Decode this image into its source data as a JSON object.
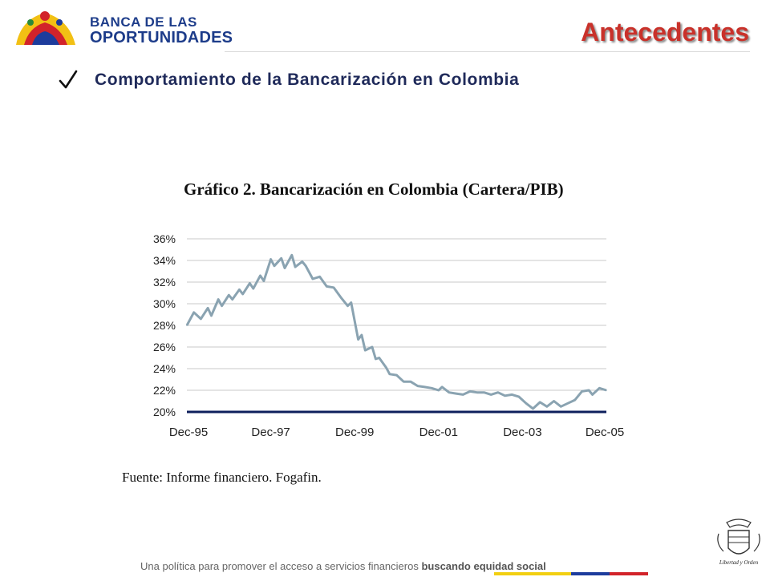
{
  "header": {
    "logo_line1": "BANCA DE LAS",
    "logo_line2": "OPORTUNIDADES",
    "title": "Antecedentes"
  },
  "subtitle": "Comportamiento de la  Bancarización en Colombia",
  "chart_title": "Gráfico 2. Bancarización en Colombia (Cartera/PIB)",
  "source": "Fuente: Informe financiero. Fogafin.",
  "footer": {
    "text_plain": "Una política para promover el acceso a servicios financieros ",
    "text_emphasis": "buscando equidad social"
  },
  "seal": {
    "caption": "Libertad y Orden"
  },
  "colors": {
    "title": "#c9312a",
    "subtitle": "#1f2a5a",
    "series_line": "#8aa3b1",
    "baseline": "#0d1f5c",
    "flag_yellow": "#f2cf12",
    "flag_blue": "#1d3c9c",
    "flag_red": "#d2232a"
  },
  "icons": [
    "checkmark-icon",
    "logo-icon",
    "coat-of-arms-icon"
  ],
  "chart_data": {
    "type": "line",
    "title": "Gráfico 2. Bancarización en Colombia (Cartera/PIB)",
    "ylim": [
      20,
      36
    ],
    "yticks": [
      20,
      22,
      24,
      26,
      28,
      30,
      32,
      34,
      36
    ],
    "ytick_labels": [
      "20%",
      "22%",
      "24%",
      "26%",
      "28%",
      "30%",
      "32%",
      "34%",
      "36%"
    ],
    "xlim": [
      "1995-12",
      "2005-12"
    ],
    "xtick_labels": [
      "Dec-95",
      "Dec-97",
      "Dec-99",
      "Dec-01",
      "Dec-03",
      "Dec-05"
    ],
    "xticks": [
      "1995-12",
      "1997-12",
      "1999-12",
      "2001-12",
      "2003-12",
      "2005-12"
    ],
    "grid": true,
    "series": [
      {
        "points": [
          [
            "1995-12",
            28.0
          ],
          [
            "1996-02",
            29.2
          ],
          [
            "1996-04",
            28.6
          ],
          [
            "1996-06",
            29.6
          ],
          [
            "1996-07",
            28.9
          ],
          [
            "1996-09",
            30.4
          ],
          [
            "1996-10",
            29.8
          ],
          [
            "1996-12",
            30.8
          ],
          [
            "1997-01",
            30.4
          ],
          [
            "1997-03",
            31.3
          ],
          [
            "1997-04",
            30.9
          ],
          [
            "1997-06",
            31.9
          ],
          [
            "1997-07",
            31.4
          ],
          [
            "1997-09",
            32.6
          ],
          [
            "1997-10",
            32.1
          ],
          [
            "1997-12",
            34.1
          ],
          [
            "1998-01",
            33.5
          ],
          [
            "1998-03",
            34.2
          ],
          [
            "1998-04",
            33.3
          ],
          [
            "1998-06",
            34.5
          ],
          [
            "1998-07",
            33.4
          ],
          [
            "1998-09",
            33.9
          ],
          [
            "1998-10",
            33.5
          ],
          [
            "1998-12",
            32.3
          ],
          [
            "1999-02",
            32.5
          ],
          [
            "1999-04",
            31.6
          ],
          [
            "1999-06",
            31.5
          ],
          [
            "1999-08",
            30.6
          ],
          [
            "1999-10",
            29.8
          ],
          [
            "1999-11",
            30.1
          ],
          [
            "2000-01",
            26.7
          ],
          [
            "2000-02",
            27.1
          ],
          [
            "2000-03",
            25.7
          ],
          [
            "2000-05",
            26.0
          ],
          [
            "2000-06",
            24.9
          ],
          [
            "2000-07",
            25.0
          ],
          [
            "2000-09",
            24.1
          ],
          [
            "2000-10",
            23.5
          ],
          [
            "2000-12",
            23.4
          ],
          [
            "2001-02",
            22.8
          ],
          [
            "2001-04",
            22.8
          ],
          [
            "2001-06",
            22.4
          ],
          [
            "2001-08",
            22.3
          ],
          [
            "2001-10",
            22.2
          ],
          [
            "2001-12",
            22.0
          ],
          [
            "2002-01",
            22.3
          ],
          [
            "2002-03",
            21.8
          ],
          [
            "2002-05",
            21.7
          ],
          [
            "2002-07",
            21.6
          ],
          [
            "2002-09",
            21.9
          ],
          [
            "2002-11",
            21.8
          ],
          [
            "2003-01",
            21.8
          ],
          [
            "2003-03",
            21.6
          ],
          [
            "2003-05",
            21.8
          ],
          [
            "2003-07",
            21.5
          ],
          [
            "2003-09",
            21.6
          ],
          [
            "2003-11",
            21.4
          ],
          [
            "2004-01",
            20.8
          ],
          [
            "2004-03",
            20.3
          ],
          [
            "2004-05",
            20.9
          ],
          [
            "2004-07",
            20.5
          ],
          [
            "2004-09",
            21.0
          ],
          [
            "2004-11",
            20.5
          ],
          [
            "2005-01",
            20.8
          ],
          [
            "2005-03",
            21.1
          ],
          [
            "2005-05",
            21.9
          ],
          [
            "2005-07",
            22.0
          ],
          [
            "2005-08",
            21.6
          ],
          [
            "2005-10",
            22.2
          ],
          [
            "2005-12",
            22.0
          ]
        ]
      }
    ]
  }
}
